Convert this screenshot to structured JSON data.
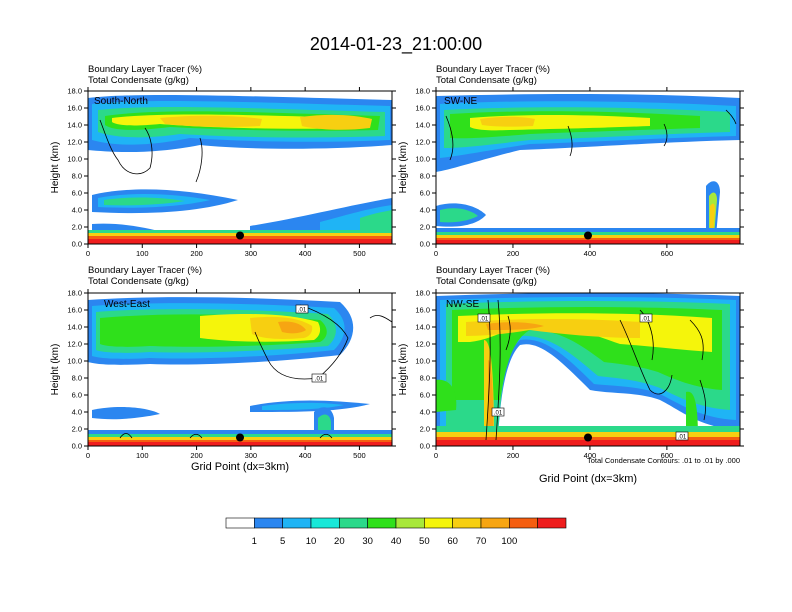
{
  "title": "2014-01-23_21:00:00",
  "subtitle_line1": "Boundary Layer Tracer   (%)",
  "subtitle_line2": "Total Condensate   (g/kg)",
  "contour_note": "Total Condensate Contours: .01 to .01 by .000",
  "contour_label": ".01",
  "colorbar": {
    "labels": [
      "1",
      "5",
      "10",
      "20",
      "30",
      "40",
      "50",
      "60",
      "70",
      "100"
    ],
    "colors": [
      "#ffffff",
      "#2b86f0",
      "#1fb4f5",
      "#18e8d8",
      "#2bd98a",
      "#2fe01b",
      "#a8e83a",
      "#f5f50b",
      "#f7cf11",
      "#f7a512",
      "#f55e10",
      "#ef1d1d"
    ]
  },
  "chart_data": [
    {
      "type": "heatmap",
      "panel_label": "South-North",
      "ylabel": "Height (km)",
      "xlabel": "",
      "xlim": [
        0,
        560
      ],
      "ylim": [
        0,
        18
      ],
      "xticks": [
        "0",
        "100",
        "200",
        "300",
        "400",
        "500"
      ],
      "yticks": [
        "0.0",
        "2.0",
        "4.0",
        "6.0",
        "8.0",
        "10.0",
        "12.0",
        "14.0",
        "16.0",
        "18.0"
      ],
      "marker_x": 280,
      "marker_y": 1.0
    },
    {
      "type": "heatmap",
      "panel_label": "SW-NE",
      "ylabel": "Height (km)",
      "xlabel": "",
      "xlim": [
        0,
        790
      ],
      "ylim": [
        0,
        18
      ],
      "xticks": [
        "0",
        "200",
        "400",
        "600"
      ],
      "yticks": [
        "0.0",
        "2.0",
        "4.0",
        "6.0",
        "8.0",
        "10.0",
        "12.0",
        "14.0",
        "16.0",
        "18.0"
      ],
      "marker_x": 395,
      "marker_y": 1.0
    },
    {
      "type": "heatmap",
      "panel_label": "West-East",
      "ylabel": "Height (km)",
      "xlabel": "Grid Point (dx=3km)",
      "xlim": [
        0,
        560
      ],
      "ylim": [
        0,
        18
      ],
      "xticks": [
        "0",
        "100",
        "200",
        "300",
        "400",
        "500"
      ],
      "yticks": [
        "0.0",
        "2.0",
        "4.0",
        "6.0",
        "8.0",
        "10.0",
        "12.0",
        "14.0",
        "16.0",
        "18.0"
      ],
      "marker_x": 280,
      "marker_y": 1.0
    },
    {
      "type": "heatmap",
      "panel_label": "NW-SE",
      "ylabel": "Height (km)",
      "xlabel": "Grid Point (dx=3km)",
      "xlim": [
        0,
        790
      ],
      "ylim": [
        0,
        18
      ],
      "xticks": [
        "0",
        "200",
        "400",
        "600"
      ],
      "yticks": [
        "0.0",
        "2.0",
        "4.0",
        "6.0",
        "8.0",
        "10.0",
        "12.0",
        "14.0",
        "16.0",
        "18.0"
      ],
      "marker_x": 395,
      "marker_y": 1.0
    }
  ]
}
